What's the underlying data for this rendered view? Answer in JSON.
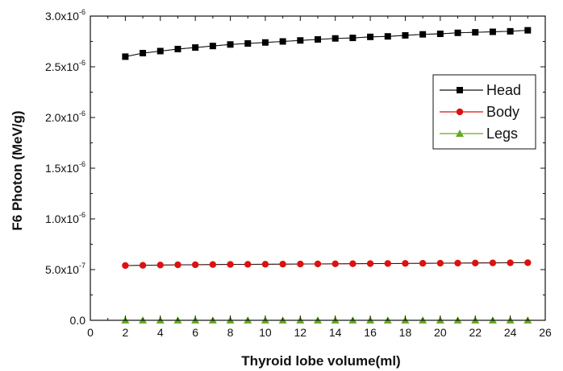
{
  "chart_data": {
    "type": "line",
    "xlabel": "Thyroid lobe volume(ml)",
    "ylabel": "F6 Photon (MeV/g)",
    "xlim": [
      0,
      26
    ],
    "ylim": [
      0,
      3e-06
    ],
    "x_ticks": [
      0,
      2,
      4,
      6,
      8,
      10,
      12,
      14,
      16,
      18,
      20,
      22,
      24,
      26
    ],
    "y_ticks": [
      {
        "value": 0,
        "mantissa": "0.0",
        "exponent": ""
      },
      {
        "value": 5e-07,
        "mantissa": "5.0x10",
        "exponent": "-7"
      },
      {
        "value": 1e-06,
        "mantissa": "1.0x10",
        "exponent": "-6"
      },
      {
        "value": 1.5e-06,
        "mantissa": "1.5x10",
        "exponent": "-6"
      },
      {
        "value": 2e-06,
        "mantissa": "2.0x10",
        "exponent": "-6"
      },
      {
        "value": 2.5e-06,
        "mantissa": "2.5x10",
        "exponent": "-6"
      },
      {
        "value": 3e-06,
        "mantissa": "3.0x10",
        "exponent": "-6"
      }
    ],
    "x": [
      2,
      3,
      4,
      5,
      6,
      7,
      8,
      9,
      10,
      11,
      12,
      13,
      14,
      15,
      16,
      17,
      18,
      19,
      20,
      21,
      22,
      23,
      24,
      25
    ],
    "series": [
      {
        "name": "Head",
        "marker": "square",
        "color": "#000000",
        "values": [
          2.6e-06,
          2.635e-06,
          2.655e-06,
          2.675e-06,
          2.69e-06,
          2.705e-06,
          2.72e-06,
          2.73e-06,
          2.74e-06,
          2.75e-06,
          2.76e-06,
          2.77e-06,
          2.78e-06,
          2.785e-06,
          2.795e-06,
          2.8e-06,
          2.81e-06,
          2.82e-06,
          2.825e-06,
          2.835e-06,
          2.84e-06,
          2.845e-06,
          2.85e-06,
          2.86e-06
        ]
      },
      {
        "name": "Body",
        "marker": "circle",
        "color": "#dd1111",
        "values": [
          5.4e-07,
          5.42e-07,
          5.45e-07,
          5.47e-07,
          5.48e-07,
          5.5e-07,
          5.51e-07,
          5.52e-07,
          5.53e-07,
          5.54e-07,
          5.55e-07,
          5.56e-07,
          5.57e-07,
          5.58e-07,
          5.59e-07,
          5.6e-07,
          5.61e-07,
          5.62e-07,
          5.63e-07,
          5.64e-07,
          5.65e-07,
          5.66e-07,
          5.67e-07,
          5.68e-07
        ]
      },
      {
        "name": "Legs",
        "marker": "triangle",
        "color": "#66aa22",
        "values": [
          0,
          0,
          0,
          0,
          0,
          0,
          0,
          0,
          0,
          0,
          0,
          0,
          0,
          0,
          0,
          0,
          0,
          0,
          0,
          0,
          0,
          0,
          0,
          0
        ]
      }
    ],
    "legend_position": "top-right",
    "grid": false
  }
}
